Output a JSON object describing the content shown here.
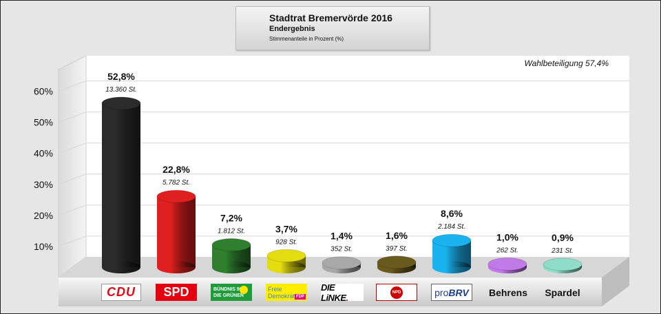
{
  "header": {
    "title": "Stadtrat Bremervörde 2016",
    "subtitle": "Endergebnis",
    "note": "Stimmenanteile in Prozent (%)"
  },
  "turnout": "Wahlbeteiligung 57,4%",
  "chart_data": {
    "type": "bar",
    "title": "Stadtrat Bremervörde 2016",
    "subtitle": "Endergebnis",
    "ylabel": "",
    "ylim": [
      0,
      60
    ],
    "yticks": [
      "10%",
      "20%",
      "30%",
      "40%",
      "50%",
      "60%"
    ],
    "grid": true,
    "categories": [
      "CDU",
      "SPD",
      "BÜNDNIS 90 DIE GRÜNEN",
      "Freie Demokraten FDP",
      "DIE LINKE.",
      "NPD",
      "proBRV",
      "Behrens",
      "Spardel"
    ],
    "values": [
      52.8,
      22.8,
      7.2,
      3.7,
      1.4,
      1.6,
      8.6,
      1.0,
      0.9
    ],
    "value_labels": [
      "52,8%",
      "22,8%",
      "7,2%",
      "3,7%",
      "1,4%",
      "1,6%",
      "8,6%",
      "1,0%",
      "0,9%"
    ],
    "vote_labels": [
      "13.360 St.",
      "5.782 St.",
      "1.812 St.",
      "928 St.",
      "352 St.",
      "397 St.",
      "2.184 St.",
      "262 St.",
      "231 St."
    ],
    "colors": [
      "#2b2b2b",
      "#e02020",
      "#2f7f2f",
      "#e3dc10",
      "#a8a8a8",
      "#6b5a1e",
      "#1ab2ef",
      "#c27ae8",
      "#8fdcc8"
    ]
  },
  "logos": {
    "cdu": "CDU",
    "spd": "SPD",
    "gruene_line1": "BÜNDNIS 90",
    "gruene_line2": "DIE GRÜNEN",
    "fdp_line1": "Freie",
    "fdp_line2": "Demokraten",
    "fdp_mark": "FDP",
    "linke_main": "DIE LiNKE",
    "linke_dot": ".",
    "npd": "NPD",
    "brv_pre": "pro",
    "brv_main": "BRV",
    "behrens": "Behrens",
    "spardel": "Spardel"
  }
}
